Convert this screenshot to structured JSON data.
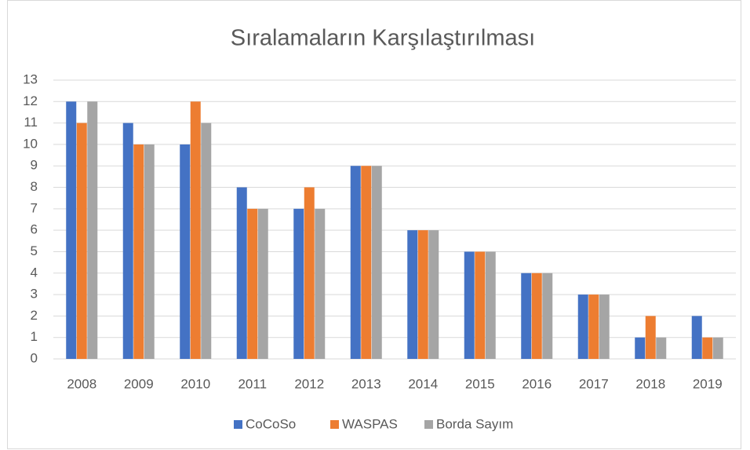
{
  "chart_data": {
    "type": "bar",
    "title": "Sıralamaların Karşılaştırılması",
    "categories": [
      "2008",
      "2009",
      "2010",
      "2011",
      "2012",
      "2013",
      "2014",
      "2015",
      "2016",
      "2017",
      "2018",
      "2019"
    ],
    "series": [
      {
        "name": "CoCoSo",
        "color": "#4472c4",
        "values": [
          12,
          11,
          10,
          8,
          7,
          9,
          6,
          5,
          4,
          3,
          1,
          2
        ]
      },
      {
        "name": "WASPAS",
        "color": "#ed7d31",
        "values": [
          11,
          10,
          12,
          7,
          8,
          9,
          6,
          5,
          4,
          3,
          2,
          1
        ]
      },
      {
        "name": "Borda Sayım",
        "color": "#a5a5a5",
        "values": [
          12,
          10,
          11,
          7,
          7,
          9,
          6,
          5,
          4,
          3,
          1,
          1
        ]
      }
    ],
    "ylim": [
      0,
      13
    ],
    "yticks": [
      0,
      1,
      2,
      3,
      4,
      5,
      6,
      7,
      8,
      9,
      10,
      11,
      12,
      13
    ],
    "grid": true,
    "legend": "bottom"
  }
}
